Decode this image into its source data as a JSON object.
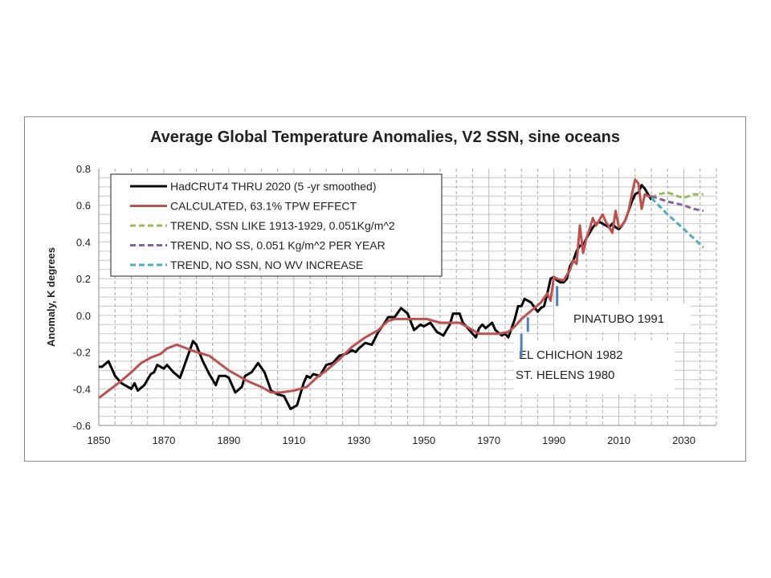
{
  "chart_data": {
    "type": "line",
    "title": "Average Global Temperature Anomalies, V2 SSN, sine oceans",
    "xlabel": "",
    "ylabel": "Anomaly, K degrees",
    "xlim": [
      1850,
      2040
    ],
    "ylim": [
      -0.6,
      0.8
    ],
    "xticks": [
      "1850",
      "1870",
      "1890",
      "1910",
      "1930",
      "1950",
      "1970",
      "1990",
      "2010",
      "2030"
    ],
    "yticks": [
      "-0.6",
      "-0.4",
      "-0.2",
      "0.0",
      "0.2",
      "0.4",
      "0.6",
      "0.8"
    ],
    "grid": true,
    "legend_position": "top-left",
    "series": [
      {
        "name": "HadCRUT4 THRU 2020 (5 -yr smoothed)",
        "color": "#000000",
        "dash": false,
        "points": [
          [
            1850,
            -0.28
          ],
          [
            1851,
            -0.28
          ],
          [
            1853,
            -0.25
          ],
          [
            1855,
            -0.33
          ],
          [
            1857,
            -0.37
          ],
          [
            1860,
            -0.4
          ],
          [
            1861,
            -0.37
          ],
          [
            1862,
            -0.41
          ],
          [
            1864,
            -0.38
          ],
          [
            1866,
            -0.32
          ],
          [
            1867,
            -0.31
          ],
          [
            1868,
            -0.27
          ],
          [
            1870,
            -0.29
          ],
          [
            1871,
            -0.27
          ],
          [
            1873,
            -0.31
          ],
          [
            1875,
            -0.34
          ],
          [
            1877,
            -0.24
          ],
          [
            1879,
            -0.14
          ],
          [
            1880,
            -0.16
          ],
          [
            1882,
            -0.25
          ],
          [
            1884,
            -0.32
          ],
          [
            1886,
            -0.38
          ],
          [
            1887,
            -0.33
          ],
          [
            1889,
            -0.33
          ],
          [
            1890,
            -0.34
          ],
          [
            1892,
            -0.42
          ],
          [
            1894,
            -0.39
          ],
          [
            1895,
            -0.33
          ],
          [
            1897,
            -0.31
          ],
          [
            1899,
            -0.26
          ],
          [
            1901,
            -0.31
          ],
          [
            1903,
            -0.41
          ],
          [
            1905,
            -0.43
          ],
          [
            1907,
            -0.44
          ],
          [
            1909,
            -0.51
          ],
          [
            1911,
            -0.49
          ],
          [
            1913,
            -0.37
          ],
          [
            1914,
            -0.33
          ],
          [
            1915,
            -0.34
          ],
          [
            1916,
            -0.32
          ],
          [
            1918,
            -0.33
          ],
          [
            1920,
            -0.27
          ],
          [
            1922,
            -0.26
          ],
          [
            1924,
            -0.22
          ],
          [
            1926,
            -0.21
          ],
          [
            1928,
            -0.19
          ],
          [
            1929,
            -0.2
          ],
          [
            1930,
            -0.18
          ],
          [
            1932,
            -0.15
          ],
          [
            1934,
            -0.16
          ],
          [
            1936,
            -0.09
          ],
          [
            1938,
            -0.04
          ],
          [
            1939,
            -0.01
          ],
          [
            1941,
            -0.01
          ],
          [
            1943,
            0.04
          ],
          [
            1945,
            0.01
          ],
          [
            1947,
            -0.08
          ],
          [
            1949,
            -0.05
          ],
          [
            1950,
            -0.06
          ],
          [
            1952,
            -0.04
          ],
          [
            1954,
            -0.09
          ],
          [
            1956,
            -0.11
          ],
          [
            1958,
            -0.05
          ],
          [
            1959,
            0.01
          ],
          [
            1961,
            0.01
          ],
          [
            1962,
            -0.04
          ],
          [
            1964,
            -0.08
          ],
          [
            1966,
            -0.12
          ],
          [
            1967,
            -0.07
          ],
          [
            1968,
            -0.05
          ],
          [
            1969,
            -0.07
          ],
          [
            1971,
            -0.04
          ],
          [
            1972,
            -0.08
          ],
          [
            1974,
            -0.11
          ],
          [
            1975,
            -0.1
          ],
          [
            1976,
            -0.12
          ],
          [
            1978,
            -0.02
          ],
          [
            1979,
            0.05
          ],
          [
            1980,
            0.05
          ],
          [
            1981,
            0.09
          ],
          [
            1983,
            0.07
          ],
          [
            1985,
            0.02
          ],
          [
            1986,
            0.04
          ],
          [
            1987,
            0.05
          ],
          [
            1988,
            0.12
          ],
          [
            1989,
            0.2
          ],
          [
            1990,
            0.21
          ],
          [
            1991,
            0.19
          ],
          [
            1992,
            0.18
          ],
          [
            1993,
            0.18
          ],
          [
            1994,
            0.2
          ],
          [
            1995,
            0.27
          ],
          [
            1996,
            0.3
          ],
          [
            1997,
            0.35
          ],
          [
            1998,
            0.38
          ],
          [
            1999,
            0.38
          ],
          [
            2000,
            0.42
          ],
          [
            2001,
            0.45
          ],
          [
            2002,
            0.48
          ],
          [
            2003,
            0.5
          ],
          [
            2004,
            0.51
          ],
          [
            2005,
            0.5
          ],
          [
            2006,
            0.49
          ],
          [
            2007,
            0.48
          ],
          [
            2008,
            0.5
          ],
          [
            2009,
            0.48
          ],
          [
            2010,
            0.47
          ],
          [
            2011,
            0.49
          ],
          [
            2012,
            0.52
          ],
          [
            2013,
            0.57
          ],
          [
            2014,
            0.62
          ],
          [
            2015,
            0.66
          ],
          [
            2016,
            0.67
          ],
          [
            2017,
            0.71
          ],
          [
            2018,
            0.69
          ],
          [
            2019,
            0.66
          ],
          [
            2020,
            0.63
          ]
        ]
      },
      {
        "name": "CALCULATED, 63.1% TPW EFFECT",
        "color": "#c0504d",
        "dash": false,
        "points": [
          [
            1850,
            -0.45
          ],
          [
            1853,
            -0.41
          ],
          [
            1856,
            -0.37
          ],
          [
            1860,
            -0.31
          ],
          [
            1863,
            -0.26
          ],
          [
            1866,
            -0.23
          ],
          [
            1869,
            -0.21
          ],
          [
            1871,
            -0.18
          ],
          [
            1874,
            -0.16
          ],
          [
            1877,
            -0.18
          ],
          [
            1880,
            -0.2
          ],
          [
            1884,
            -0.22
          ],
          [
            1887,
            -0.26
          ],
          [
            1890,
            -0.3
          ],
          [
            1893,
            -0.33
          ],
          [
            1896,
            -0.36
          ],
          [
            1900,
            -0.39
          ],
          [
            1903,
            -0.42
          ],
          [
            1906,
            -0.42
          ],
          [
            1910,
            -0.41
          ],
          [
            1914,
            -0.39
          ],
          [
            1917,
            -0.34
          ],
          [
            1920,
            -0.3
          ],
          [
            1924,
            -0.24
          ],
          [
            1928,
            -0.17
          ],
          [
            1932,
            -0.12
          ],
          [
            1936,
            -0.08
          ],
          [
            1939,
            -0.03
          ],
          [
            1941,
            -0.02
          ],
          [
            1945,
            -0.02
          ],
          [
            1948,
            -0.02
          ],
          [
            1951,
            -0.02
          ],
          [
            1955,
            -0.04
          ],
          [
            1958,
            -0.04
          ],
          [
            1961,
            -0.04
          ],
          [
            1964,
            -0.07
          ],
          [
            1967,
            -0.1
          ],
          [
            1970,
            -0.1
          ],
          [
            1973,
            -0.1
          ],
          [
            1976,
            -0.09
          ],
          [
            1978,
            -0.06
          ],
          [
            1980,
            -0.02
          ],
          [
            1982,
            0.01
          ],
          [
            1984,
            0.04
          ],
          [
            1986,
            0.07
          ],
          [
            1988,
            0.12
          ],
          [
            1989,
            0.08
          ],
          [
            1990,
            0.21
          ],
          [
            1991,
            0.2
          ],
          [
            1993,
            0.19
          ],
          [
            1995,
            0.25
          ],
          [
            1996,
            0.3
          ],
          [
            1997,
            0.28
          ],
          [
            1998,
            0.49
          ],
          [
            1999,
            0.34
          ],
          [
            2000,
            0.42
          ],
          [
            2001,
            0.47
          ],
          [
            2002,
            0.53
          ],
          [
            2003,
            0.49
          ],
          [
            2004,
            0.52
          ],
          [
            2005,
            0.55
          ],
          [
            2006,
            0.51
          ],
          [
            2007,
            0.48
          ],
          [
            2008,
            0.45
          ],
          [
            2009,
            0.57
          ],
          [
            2010,
            0.48
          ],
          [
            2011,
            0.49
          ],
          [
            2012,
            0.52
          ],
          [
            2013,
            0.57
          ],
          [
            2014,
            0.66
          ],
          [
            2015,
            0.74
          ],
          [
            2016,
            0.72
          ],
          [
            2017,
            0.58
          ],
          [
            2018,
            0.66
          ],
          [
            2019,
            0.65
          ],
          [
            2020,
            0.65
          ]
        ]
      },
      {
        "name": "TREND, SSN LIKE 1913-1929, 0.051Kg/m^2",
        "color": "#9bbb59",
        "dash": true,
        "points": [
          [
            2020,
            0.64
          ],
          [
            2022,
            0.66
          ],
          [
            2025,
            0.67
          ],
          [
            2028,
            0.65
          ],
          [
            2030,
            0.64
          ],
          [
            2033,
            0.66
          ],
          [
            2036,
            0.66
          ]
        ]
      },
      {
        "name": "TREND, NO SS, 0.051 Kg/m^2 PER YEAR",
        "color": "#8064a2",
        "dash": true,
        "points": [
          [
            2020,
            0.65
          ],
          [
            2025,
            0.62
          ],
          [
            2030,
            0.6
          ],
          [
            2033,
            0.58
          ],
          [
            2036,
            0.57
          ]
        ]
      },
      {
        "name": "TREND, NO SSN, NO WV INCREASE",
        "color": "#4bacc6",
        "dash": true,
        "points": [
          [
            2020,
            0.64
          ],
          [
            2025,
            0.55
          ],
          [
            2030,
            0.47
          ],
          [
            2036,
            0.37
          ]
        ]
      }
    ],
    "annotations": [
      {
        "text": "PINATUBO 1991",
        "year": 1991,
        "marker_range": [
          0.05,
          0.16
        ]
      },
      {
        "text": "EL CHICHON 1982",
        "year": 1982,
        "marker_range": [
          -0.09,
          -0.01
        ]
      },
      {
        "text": "ST. HELENS 1980",
        "year": 1980,
        "marker_range": [
          -0.23,
          -0.1
        ]
      }
    ],
    "annotation_marker_color": "#4f81bd"
  }
}
